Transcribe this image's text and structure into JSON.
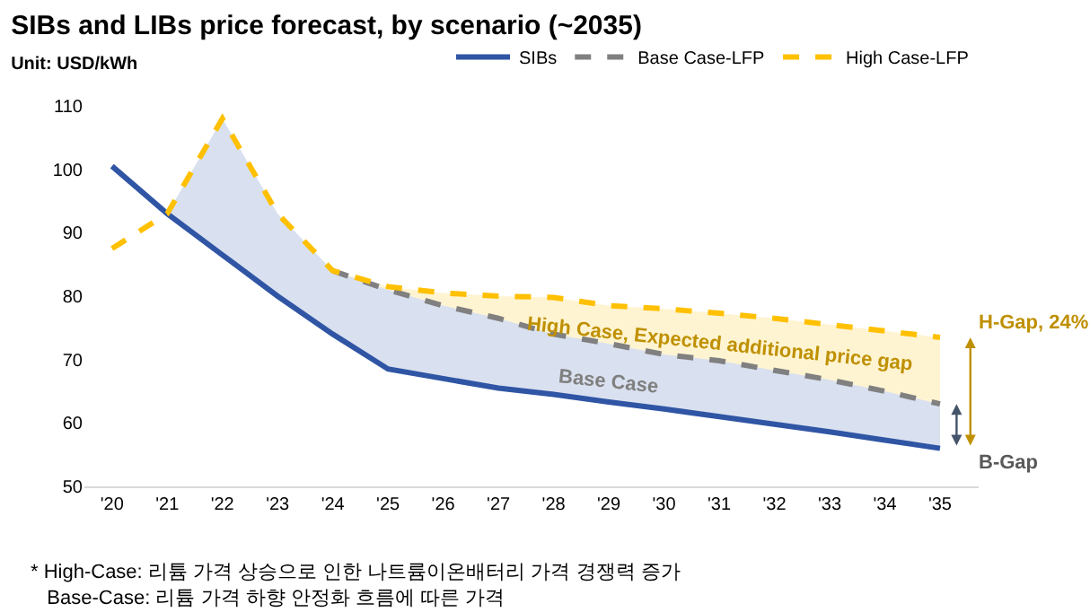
{
  "chart_data": {
    "type": "line",
    "title": "SIBs and LIBs price forecast, by scenario (~2035)",
    "subtitle": "Unit: USD/kWh",
    "categories": [
      "'20",
      "'21",
      "'22",
      "'23",
      "'24",
      "'25",
      "'26",
      "'27",
      "'28",
      "'29",
      "'30",
      "'31",
      "'32",
      "'33",
      "'34",
      "'35"
    ],
    "series": [
      {
        "name": "SIBs",
        "color": "#2f55a4",
        "line_style": "solid",
        "values": [
          100.5,
          93,
          86.5,
          80,
          74,
          68.5,
          67,
          65.5,
          64.5,
          63.3,
          62.2,
          61,
          59.8,
          58.6,
          57.3,
          56
        ],
        "lower": [
          null,
          93,
          86.5,
          80,
          74,
          68.5,
          67,
          65.5,
          64.5,
          63.3,
          62.2,
          61,
          59.8,
          58.6,
          57.3,
          56
        ],
        "upper": [
          null,
          93,
          108,
          93,
          84,
          81,
          78.5,
          76.5,
          74,
          72.5,
          70.8,
          69.8,
          68.3,
          66.8,
          65,
          63
        ]
      },
      {
        "name": "Base Case-LFP",
        "color": "#808080",
        "line_style": "dashed",
        "values": [
          null,
          null,
          null,
          null,
          84,
          81,
          78.5,
          76.5,
          74,
          72.5,
          70.8,
          69.8,
          68.3,
          66.8,
          65,
          63
        ]
      },
      {
        "name": "High Case-LFP",
        "color": "#ffc000",
        "line_style": "dashed",
        "values": [
          87.5,
          93,
          108,
          93,
          84,
          81.5,
          80.5,
          80,
          79.8,
          78.5,
          78,
          77.3,
          76.5,
          75.5,
          74.5,
          73.5
        ],
        "upper": [
          null,
          null,
          null,
          null,
          84,
          81.5,
          80.5,
          80,
          79.8,
          78.5,
          78,
          77.3,
          76.5,
          75.5,
          74.5,
          73.5
        ],
        "lower": [
          null,
          null,
          null,
          null,
          84,
          81,
          78.5,
          76.5,
          74,
          72.5,
          70.8,
          69.8,
          68.3,
          66.8,
          65,
          63
        ]
      }
    ],
    "ylim": [
      50,
      110
    ],
    "yticks": [
      50,
      60,
      70,
      80,
      90,
      100,
      110
    ],
    "legend": "top right",
    "marker": "none",
    "annotations": [
      "High Case, Expected additional price gap",
      "Base Case",
      "H-Gap, 24%",
      "B-Gap",
      "* High-Case: 리튬 가격 상승으로 인한 나트륨이온배터리 가격 경쟁력 증가",
      "Base-Case: 리튬 가격 하향 안정화 흐름에 따른 가격"
    ]
  }
}
